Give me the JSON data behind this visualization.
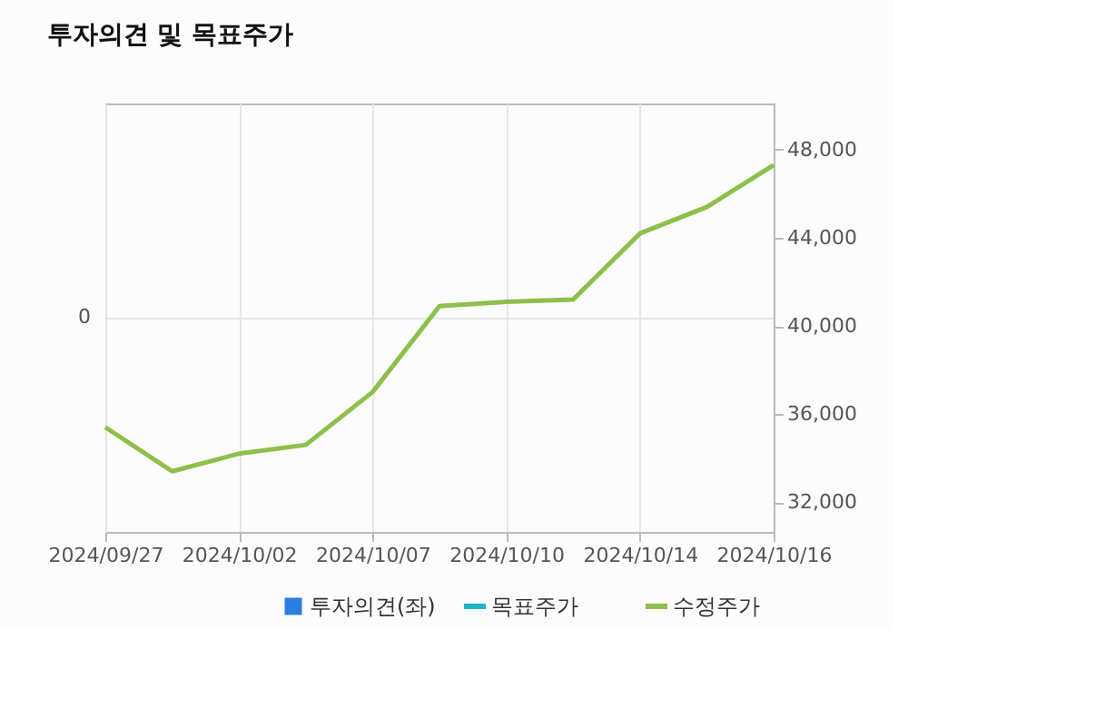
{
  "chart_data": {
    "type": "line",
    "title": "투자의견 및 목표주가",
    "categories": [
      "2024/09/27",
      null,
      "2024/10/02",
      null,
      "2024/10/07",
      null,
      "2024/10/10",
      null,
      "2024/10/14",
      null,
      "2024/10/16"
    ],
    "series": [
      {
        "name": "투자의견(좌)",
        "type": "bar",
        "color": "#2a7fe0",
        "values": [
          null,
          null,
          null,
          null,
          null,
          null,
          null,
          null,
          null,
          null,
          null
        ]
      },
      {
        "name": "목표주가",
        "axis": "y2",
        "color": "#1fb3c8",
        "values": [
          null,
          null,
          null,
          null,
          null,
          null,
          null,
          null,
          null,
          null,
          null
        ]
      },
      {
        "name": "수정주가",
        "axis": "y2",
        "color": "#8dc04b",
        "values": [
          35400,
          33400,
          34200,
          34600,
          37000,
          40900,
          41100,
          41200,
          44200,
          45400,
          47300
        ]
      }
    ],
    "annotations": [
      "0"
    ],
    "y2lim": [
      30650,
      50100
    ],
    "y2ticks": [
      {
        "value": 32000,
        "label": "32,000"
      },
      {
        "value": 36000,
        "label": "36,000"
      },
      {
        "value": 40000,
        "label": "40,000"
      },
      {
        "value": 44000,
        "label": "44,000"
      },
      {
        "value": 48000,
        "label": "48,000"
      }
    ],
    "grid": true,
    "legend": "bottom"
  }
}
